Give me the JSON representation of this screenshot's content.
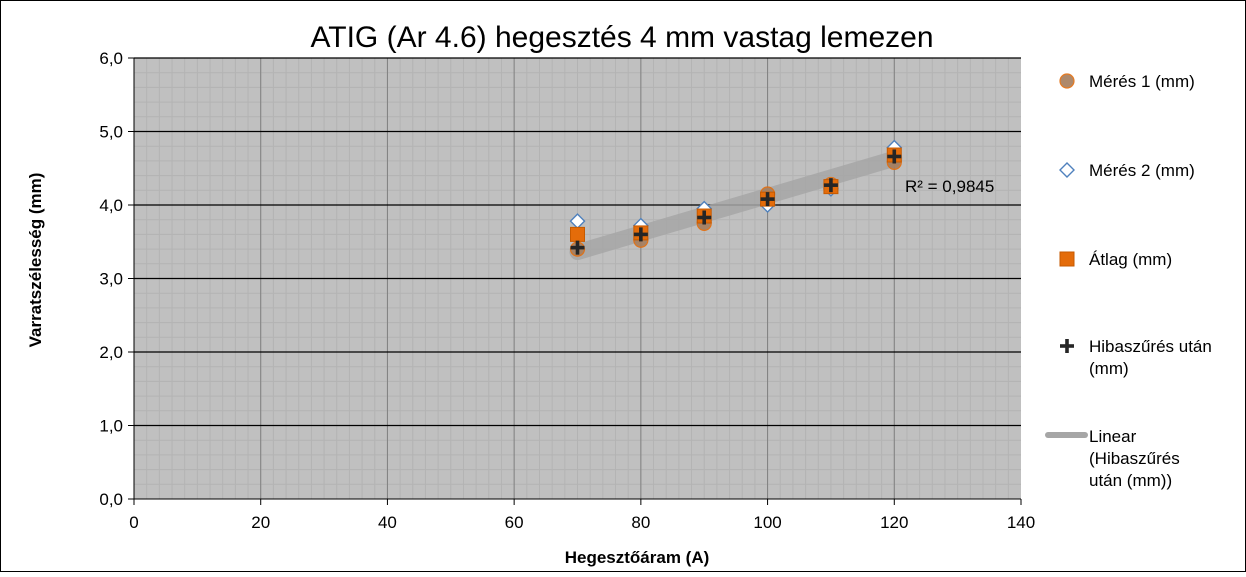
{
  "chart_data": {
    "type": "scatter",
    "title": "ATIG (Ar 4.6) hegesztés 4 mm vastag lemezen",
    "xlabel": "Hegesztőáram (A)",
    "ylabel": "Varratszélesség (mm)",
    "xlim": [
      0,
      140
    ],
    "ylim": [
      0,
      6
    ],
    "x_ticks": [
      "0",
      "20",
      "40",
      "60",
      "80",
      "100",
      "120",
      "140"
    ],
    "y_ticks": [
      "0,0",
      "1,0",
      "2,0",
      "3,0",
      "4,0",
      "5,0",
      "6,0"
    ],
    "grid": true,
    "legend_position": "right",
    "colors": {
      "plot_bg": "#c0c0c0",
      "minor_grid": "#b3b3b3",
      "major_grid": "#808080",
      "meres1": "#a67d5c",
      "meres2": "#4f81bd",
      "atlag": "#e46c0a",
      "hibaszures": "#262626",
      "trend": "#a6a6a6"
    },
    "series": [
      {
        "name": "Mérés 1 (mm)",
        "marker": "circle",
        "x": [
          70,
          80,
          90,
          100,
          110,
          120
        ],
        "y": [
          3.4,
          3.52,
          3.75,
          4.15,
          4.28,
          4.58
        ]
      },
      {
        "name": "Mérés 2 (mm)",
        "marker": "diamond",
        "x": [
          70,
          80,
          90,
          100,
          110,
          120
        ],
        "y": [
          3.78,
          3.72,
          3.95,
          4.0,
          4.22,
          4.78
        ]
      },
      {
        "name": "Átlag (mm)",
        "marker": "square",
        "x": [
          70,
          80,
          90,
          100,
          110,
          120
        ],
        "y": [
          3.6,
          3.62,
          3.85,
          4.08,
          4.25,
          4.68
        ]
      },
      {
        "name": "Hibaszűrés után (mm)",
        "marker": "plus",
        "x": [
          70,
          80,
          90,
          100,
          110,
          120
        ],
        "y": [
          3.42,
          3.6,
          3.83,
          4.08,
          4.27,
          4.66
        ]
      }
    ],
    "trendline": {
      "name": "Linear (Hibaszűrés után (mm))",
      "x": [
        70,
        120
      ],
      "y": [
        3.36,
        4.63
      ],
      "r2_label": "R² = 0,9845"
    }
  }
}
